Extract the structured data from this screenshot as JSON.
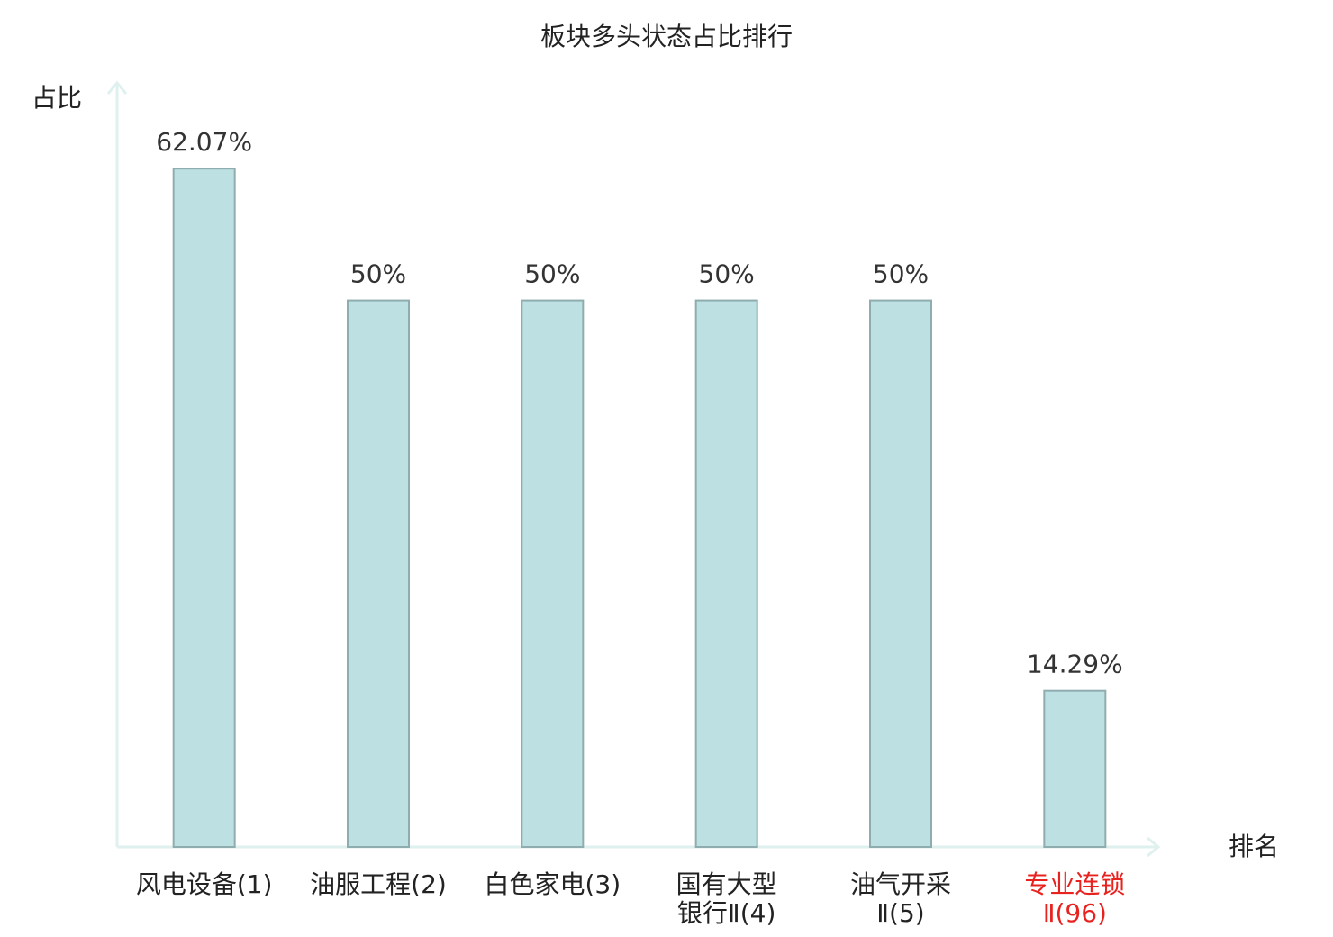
{
  "chart_data": {
    "type": "bar",
    "title": "板块多头状态占比排行",
    "y_label": "占比",
    "x_label": "排名",
    "categories": [
      "风电设备(1)",
      "油服工程(2)",
      "白色家电(3)",
      "国有大型\n银行Ⅱ(4)",
      "油气开采\nⅡ(5)",
      "专业连锁\nⅡ(96)"
    ],
    "category_colors": [
      "#222222",
      "#222222",
      "#222222",
      "#222222",
      "#222222",
      "#e8231f"
    ],
    "values": [
      62.07,
      50,
      50,
      50,
      50,
      14.29
    ],
    "value_labels": [
      "62.07%",
      "50%",
      "50%",
      "50%",
      "50%",
      "14.29%"
    ],
    "color": "#bde0e3",
    "ylim": [
      0,
      70
    ]
  }
}
